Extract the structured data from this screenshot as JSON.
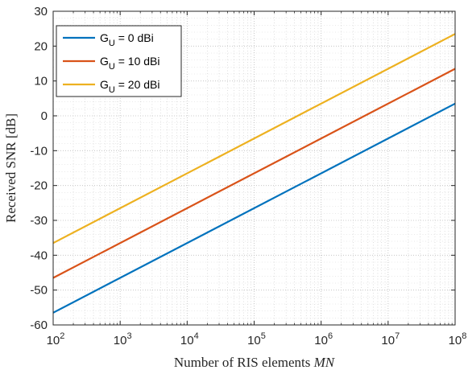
{
  "chart_data": {
    "type": "line",
    "xscale": "log",
    "xlim": [
      100,
      100000000
    ],
    "ylim": [
      -60,
      30
    ],
    "x_tick_values": [
      100,
      1000,
      10000,
      100000,
      1000000,
      10000000,
      100000000
    ],
    "x_tick_labels": [
      {
        "base": "10",
        "exp": "2"
      },
      {
        "base": "10",
        "exp": "3"
      },
      {
        "base": "10",
        "exp": "4"
      },
      {
        "base": "10",
        "exp": "5"
      },
      {
        "base": "10",
        "exp": "6"
      },
      {
        "base": "10",
        "exp": "7"
      },
      {
        "base": "10",
        "exp": "8"
      }
    ],
    "y_tick_values": [
      -60,
      -50,
      -40,
      -30,
      -20,
      -10,
      0,
      10,
      20,
      30
    ],
    "y_tick_labels": [
      "-60",
      "-50",
      "-40",
      "-30",
      "-20",
      "-10",
      "0",
      "10",
      "20",
      "30"
    ],
    "xlabel": {
      "text": "Number of RIS elements ",
      "math": "MN"
    },
    "ylabel": "Received SNR [dB]",
    "grid": true,
    "minor_grid": true,
    "legend_position": "top-left",
    "series": [
      {
        "name": "G_U = 0 dBi",
        "label_main": "G",
        "label_sub": "U",
        "label_rest": " = 0 dBi",
        "color": "#0072BD",
        "x": [
          100,
          100000000
        ],
        "y": [
          -56.5,
          3.5
        ]
      },
      {
        "name": "G_U = 10 dBi",
        "label_main": "G",
        "label_sub": "U",
        "label_rest": " = 10 dBi",
        "color": "#D95319",
        "x": [
          100,
          100000000
        ],
        "y": [
          -46.5,
          13.5
        ]
      },
      {
        "name": "G_U = 20 dBi",
        "label_main": "G",
        "label_sub": "U",
        "label_rest": " = 20 dBi",
        "color": "#EDB120",
        "x": [
          100,
          100000000
        ],
        "y": [
          -36.5,
          23.5
        ]
      }
    ]
  }
}
